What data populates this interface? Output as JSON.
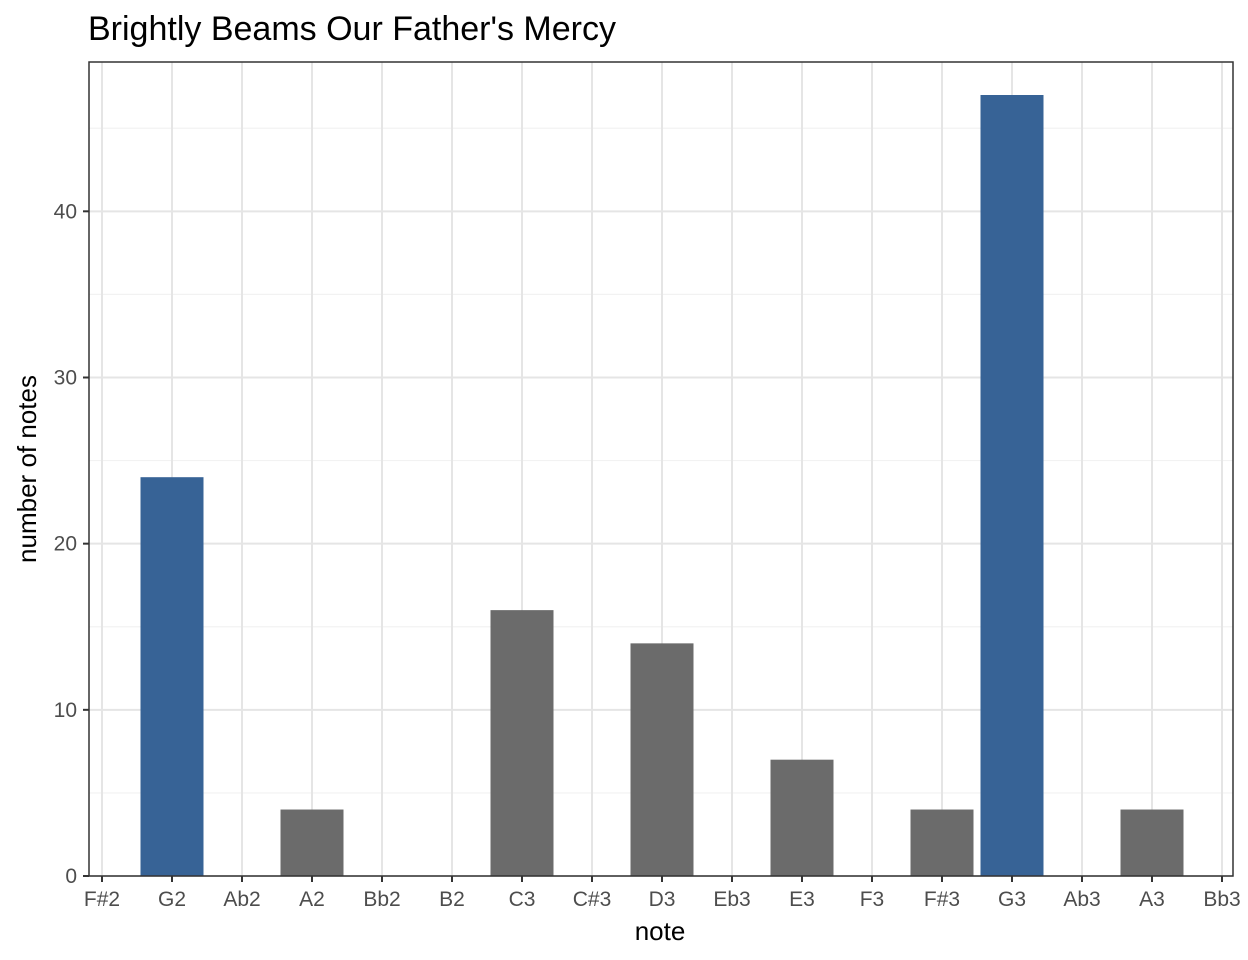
{
  "chart_data": {
    "type": "bar",
    "title": "Brightly Beams Our Father's Mercy",
    "xlabel": "note",
    "ylabel": "number of notes",
    "categories": [
      "F#2",
      "G2",
      "Ab2",
      "A2",
      "Bb2",
      "B2",
      "C3",
      "C#3",
      "D3",
      "Eb3",
      "E3",
      "F3",
      "F#3",
      "G3",
      "Ab3",
      "A3",
      "Bb3"
    ],
    "values": [
      0,
      24,
      0,
      4,
      0,
      0,
      16,
      0,
      14,
      0,
      7,
      0,
      4,
      47,
      0,
      4,
      0
    ],
    "highlighted": [
      "G2",
      "G3"
    ],
    "ylim": [
      0,
      48
    ],
    "yticks": [
      0,
      10,
      20,
      30,
      40
    ],
    "grid": true,
    "colors": {
      "highlight": "#376396",
      "default": "#6b6b6b"
    }
  }
}
